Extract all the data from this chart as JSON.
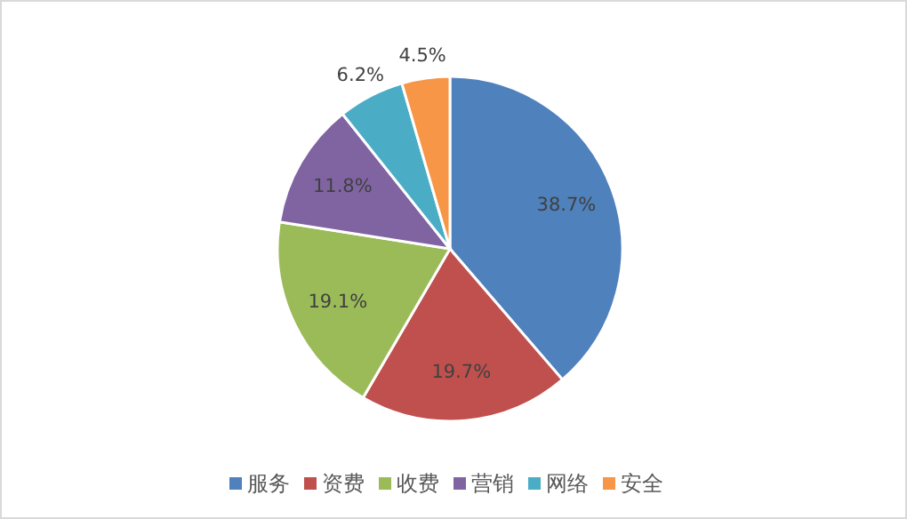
{
  "chart_data": {
    "type": "pie",
    "categories": [
      "服务",
      "资费",
      "收费",
      "营销",
      "网络",
      "安全"
    ],
    "values": [
      38.7,
      19.7,
      19.1,
      11.8,
      6.2,
      4.5
    ],
    "value_labels": [
      "38.7%",
      "19.7%",
      "19.1%",
      "11.8%",
      "6.2%",
      "4.5%"
    ],
    "colors": [
      "#4f81bd",
      "#c0504d",
      "#9bbb59",
      "#8064a2",
      "#4bacc6",
      "#f79646"
    ],
    "legend": "bottom"
  }
}
